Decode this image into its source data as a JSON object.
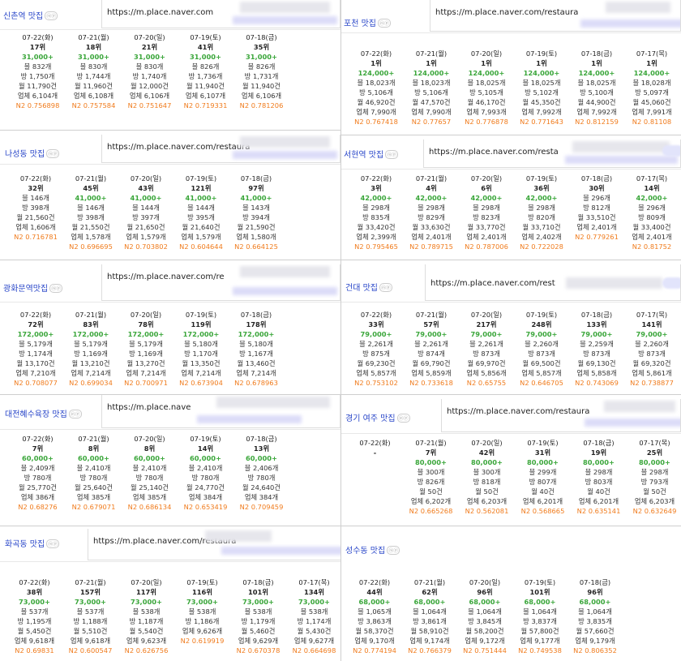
{
  "panels": [
    {
      "title": "신촌역 맛집",
      "url": "https://m.place.naver.com",
      "columns": [
        {
          "date": "07-22(화)",
          "rank": "17위",
          "vol": "31,000+",
          "lines": [
            "블 832개",
            "방 1,750개",
            "월 11,790건",
            "업체 6,104개"
          ],
          "n2": "N2 0.756898"
        },
        {
          "date": "07-21(월)",
          "rank": "18위",
          "vol": "31,000+",
          "lines": [
            "블 830개",
            "방 1,744개",
            "월 11,960건",
            "업체 6,108개"
          ],
          "n2": "N2 0.757584"
        },
        {
          "date": "07-20(일)",
          "rank": "21위",
          "vol": "31,000+",
          "lines": [
            "블 830개",
            "방 1,740개",
            "월 12,000건",
            "업체 6,106개"
          ],
          "n2": "N2 0.751647"
        },
        {
          "date": "07-19(토)",
          "rank": "41위",
          "vol": "31,000+",
          "lines": [
            "블 826개",
            "방 1,736개",
            "월 11,940건",
            "업체 6,107개"
          ],
          "n2": "N2 0.719331"
        },
        {
          "date": "07-18(금)",
          "rank": "35위",
          "vol": "31,000+",
          "lines": [
            "블 826개",
            "방 1,731개",
            "월 11,940건",
            "업체 6,106개"
          ],
          "n2": "N2 0.781206"
        }
      ]
    },
    {
      "title": "포천 맛집",
      "url": "https://m.place.naver.com/restaura",
      "columns": [
        {
          "date": "07-22(화)",
          "rank": "1위",
          "vol": "124,000+",
          "lines": [
            "블 18,023개",
            "방 5,106개",
            "월 46,920건",
            "업체 7,990개"
          ],
          "n2": "N2 0.767418"
        },
        {
          "date": "07-21(월)",
          "rank": "1위",
          "vol": "124,000+",
          "lines": [
            "블 18,023개",
            "방 5,106개",
            "월 47,570건",
            "업체 7,990개"
          ],
          "n2": "N2 0.77657"
        },
        {
          "date": "07-20(일)",
          "rank": "1위",
          "vol": "124,000+",
          "lines": [
            "블 18,025개",
            "방 5,105개",
            "월 46,170건",
            "업체 7,993개"
          ],
          "n2": "N2 0.776878"
        },
        {
          "date": "07-19(토)",
          "rank": "1위",
          "vol": "124,000+",
          "lines": [
            "블 18,025개",
            "방 5,102개",
            "월 45,350건",
            "업체 7,992개"
          ],
          "n2": "N2 0.771643"
        },
        {
          "date": "07-18(금)",
          "rank": "1위",
          "vol": "124,000+",
          "lines": [
            "블 18,025개",
            "방 5,100개",
            "월 44,900건",
            "업체 7,992개"
          ],
          "n2": "N2 0.812159"
        },
        {
          "date": "07-17(목)",
          "rank": "1위",
          "vol": "124,000+",
          "lines": [
            "블 18,028개",
            "방 5,097개",
            "월 45,060건",
            "업체 7,991개"
          ],
          "n2": "N2 0.81108"
        }
      ]
    },
    {
      "title": "나성동 맛집",
      "url": "https://m.place.naver.com/restaura",
      "columns": [
        {
          "date": "07-22(화)",
          "rank": "32위",
          "vol": "",
          "lines": [
            "블 146개",
            "방 398개",
            "월 21,560건",
            "업체 1,606개"
          ],
          "n2": "N2 0.716781"
        },
        {
          "date": "07-21(월)",
          "rank": "45위",
          "vol": "41,000+",
          "lines": [
            "블 146개",
            "방 398개",
            "월 21,550건",
            "업체 1,578개"
          ],
          "n2": "N2 0.696695"
        },
        {
          "date": "07-20(일)",
          "rank": "43위",
          "vol": "41,000+",
          "lines": [
            "블 144개",
            "방 397개",
            "월 21,650건",
            "업체 1,579개"
          ],
          "n2": "N2 0.703802"
        },
        {
          "date": "07-19(토)",
          "rank": "121위",
          "vol": "41,000+",
          "lines": [
            "블 144개",
            "방 395개",
            "월 21,640건",
            "업체 1,579개"
          ],
          "n2": "N2 0.604644"
        },
        {
          "date": "07-18(금)",
          "rank": "97위",
          "vol": "41,000+",
          "lines": [
            "블 143개",
            "방 394개",
            "월 21,590건",
            "업체 1,580개"
          ],
          "n2": "N2 0.664125"
        }
      ]
    },
    {
      "title": "서현역 맛집",
      "url": "https://m.place.naver.com/resta",
      "columns": [
        {
          "date": "07-22(화)",
          "rank": "3위",
          "vol": "42,000+",
          "lines": [
            "블 298개",
            "방 835개",
            "월 33,420건",
            "업체 2,399개"
          ],
          "n2": "N2 0.795465"
        },
        {
          "date": "07-21(월)",
          "rank": "4위",
          "vol": "42,000+",
          "lines": [
            "블 298개",
            "방 829개",
            "월 33,630건",
            "업체 2,401개"
          ],
          "n2": "N2 0.789715"
        },
        {
          "date": "07-20(일)",
          "rank": "6위",
          "vol": "42,000+",
          "lines": [
            "블 298개",
            "방 823개",
            "월 33,770건",
            "업체 2,401개"
          ],
          "n2": "N2 0.787006"
        },
        {
          "date": "07-19(토)",
          "rank": "36위",
          "vol": "42,000+",
          "lines": [
            "블 298개",
            "방 820개",
            "월 33,710건",
            "업체 2,402개"
          ],
          "n2": "N2 0.722028"
        },
        {
          "date": "07-18(금)",
          "rank": "30위",
          "vol": "",
          "lines": [
            "블 296개",
            "방 812개",
            "월 33,510건",
            "업체 2,401개"
          ],
          "n2": "N2 0.779261"
        },
        {
          "date": "07-17(목)",
          "rank": "14위",
          "vol": "42,000+",
          "lines": [
            "블 296개",
            "방 809개",
            "월 33,400건",
            "업체 2,401개"
          ],
          "n2": "N2 0.81752"
        }
      ]
    },
    {
      "title": "광화문역맛집",
      "url": "https://m.place.naver.com/re",
      "columns": [
        {
          "date": "07-22(화)",
          "rank": "72위",
          "vol": "172,000+",
          "lines": [
            "블 5,179개",
            "방 1,174개",
            "월 13,170건",
            "업체 7,210개"
          ],
          "n2": "N2 0.708077"
        },
        {
          "date": "07-21(월)",
          "rank": "83위",
          "vol": "172,000+",
          "lines": [
            "블 5,179개",
            "방 1,169개",
            "월 13,210건",
            "업체 7,214개"
          ],
          "n2": "N2 0.699034"
        },
        {
          "date": "07-20(일)",
          "rank": "78위",
          "vol": "172,000+",
          "lines": [
            "블 5,179개",
            "방 1,169개",
            "월 13,270건",
            "업체 7,214개"
          ],
          "n2": "N2 0.700971"
        },
        {
          "date": "07-19(토)",
          "rank": "119위",
          "vol": "172,000+",
          "lines": [
            "블 5,180개",
            "방 1,170개",
            "월 13,350건",
            "업체 7,214개"
          ],
          "n2": "N2 0.673904"
        },
        {
          "date": "07-18(금)",
          "rank": "178위",
          "vol": "172,000+",
          "lines": [
            "블 5,180개",
            "방 1,167개",
            "월 13,460건",
            "업체 7,214개"
          ],
          "n2": "N2 0.678963"
        }
      ]
    },
    {
      "title": "건대 맛집",
      "url": "https://m.place.naver.com/rest",
      "columns": [
        {
          "date": "07-22(화)",
          "rank": "33위",
          "vol": "79,000+",
          "lines": [
            "블 2,261개",
            "방 875개",
            "월 69,230건",
            "업체 5,857개"
          ],
          "n2": "N2 0.753102"
        },
        {
          "date": "07-21(월)",
          "rank": "57위",
          "vol": "79,000+",
          "lines": [
            "블 2,261개",
            "방 874개",
            "월 69,790건",
            "업체 5,859개"
          ],
          "n2": "N2 0.733618"
        },
        {
          "date": "07-20(일)",
          "rank": "217위",
          "vol": "79,000+",
          "lines": [
            "블 2,261개",
            "방 873개",
            "월 69,970건",
            "업체 5,856개"
          ],
          "n2": "N2 0.65755"
        },
        {
          "date": "07-19(토)",
          "rank": "248위",
          "vol": "79,000+",
          "lines": [
            "블 2,260개",
            "방 873개",
            "월 69,500건",
            "업체 5,857개"
          ],
          "n2": "N2 0.646705"
        },
        {
          "date": "07-18(금)",
          "rank": "133위",
          "vol": "79,000+",
          "lines": [
            "블 2,259개",
            "방 873개",
            "월 69,130건",
            "업체 5,858개"
          ],
          "n2": "N2 0.743069"
        },
        {
          "date": "07-17(목)",
          "rank": "141위",
          "vol": "79,000+",
          "lines": [
            "블 2,260개",
            "방 873개",
            "월 69,320건",
            "업체 5,861개"
          ],
          "n2": "N2 0.738877"
        }
      ]
    },
    {
      "title": "대전혜수육장 맛집",
      "url": "https://m.place.nave",
      "columns": [
        {
          "date": "07-22(화)",
          "rank": "7위",
          "vol": "60,000+",
          "lines": [
            "블 2,409개",
            "방 780개",
            "월 25,770건",
            "업체 386개"
          ],
          "n2": "N2 0.68276"
        },
        {
          "date": "07-21(월)",
          "rank": "8위",
          "vol": "60,000+",
          "lines": [
            "블 2,410개",
            "방 780개",
            "월 25,640건",
            "업체 385개"
          ],
          "n2": "N2 0.679071"
        },
        {
          "date": "07-20(일)",
          "rank": "8위",
          "vol": "60,000+",
          "lines": [
            "블 2,410개",
            "방 780개",
            "월 25,140건",
            "업체 385개"
          ],
          "n2": "N2 0.686134"
        },
        {
          "date": "07-19(토)",
          "rank": "14위",
          "vol": "60,000+",
          "lines": [
            "블 2,410개",
            "방 780개",
            "월 24,770건",
            "업체 384개"
          ],
          "n2": "N2 0.653419"
        },
        {
          "date": "07-18(금)",
          "rank": "13위",
          "vol": "60,000+",
          "lines": [
            "블 2,406개",
            "방 780개",
            "월 24,640건",
            "업체 384개"
          ],
          "n2": "N2 0.709459"
        }
      ]
    },
    {
      "title": "경기 여주 맛집",
      "url": "https://m.place.naver.com/restaura",
      "columns": [
        {
          "date": "07-22(화)",
          "rank": "-",
          "vol": "",
          "lines": [],
          "n2": ""
        },
        {
          "date": "07-21(월)",
          "rank": "7위",
          "vol": "80,000+",
          "lines": [
            "블 300개",
            "방 826개",
            "월 50건",
            "업체 6,202개"
          ],
          "n2": "N2 0.665268"
        },
        {
          "date": "07-20(일)",
          "rank": "42위",
          "vol": "80,000+",
          "lines": [
            "블 300개",
            "방 818개",
            "월 50건",
            "업체 6,203개"
          ],
          "n2": "N2 0.562081"
        },
        {
          "date": "07-19(토)",
          "rank": "31위",
          "vol": "80,000+",
          "lines": [
            "블 299개",
            "방 807개",
            "월 40건",
            "업체 6,201개"
          ],
          "n2": "N2 0.568665"
        },
        {
          "date": "07-18(금)",
          "rank": "19위",
          "vol": "80,000+",
          "lines": [
            "블 298개",
            "방 803개",
            "월 40건",
            "업체 6,201개"
          ],
          "n2": "N2 0.635141"
        },
        {
          "date": "07-17(목)",
          "rank": "25위",
          "vol": "80,000+",
          "lines": [
            "블 298개",
            "방 793개",
            "월 50건",
            "업체 6,203개"
          ],
          "n2": "N2 0.632649"
        }
      ]
    },
    {
      "title": "화곡동 맛집",
      "url": "https://m.place.naver.com/restaura",
      "columns": [
        {
          "date": "07-22(화)",
          "rank": "38위",
          "vol": "73,000+",
          "lines": [
            "블 537개",
            "방 1,195개",
            "월 5,450건",
            "업체 9,618개"
          ],
          "n2": "N2 0.69831"
        },
        {
          "date": "07-21(월)",
          "rank": "157위",
          "vol": "73,000+",
          "lines": [
            "블 537개",
            "방 1,188개",
            "월 5,510건",
            "업체 9,618개"
          ],
          "n2": "N2 0.600547"
        },
        {
          "date": "07-20(일)",
          "rank": "117위",
          "vol": "73,000+",
          "lines": [
            "블 538개",
            "방 1,187개",
            "월 5,540건",
            "업체 9,623개"
          ],
          "n2": "N2 0.626756"
        },
        {
          "date": "07-19(토)",
          "rank": "116위",
          "vol": "73,000+",
          "lines": [
            "블 538개",
            "방 1,186개",
            "업체 9,626개"
          ],
          "n2": "N2 0.619919"
        },
        {
          "date": "07-18(금)",
          "rank": "101위",
          "vol": "73,000+",
          "lines": [
            "블 538개",
            "방 1,179개",
            "월 5,460건",
            "업체 9,629개"
          ],
          "n2": "N2 0.670378"
        },
        {
          "date": "07-17(목)",
          "rank": "134위",
          "vol": "73,000+",
          "lines": [
            "블 538개",
            "방 1,174개",
            "월 5,430건",
            "업체 9,627개"
          ],
          "n2": "N2 0.664698"
        }
      ]
    },
    {
      "title": "성수동 맛집",
      "url": "",
      "columns": [
        {
          "date": "07-22(화)",
          "rank": "44위",
          "vol": "68,000+",
          "lines": [
            "블 1,065개",
            "방 3,863개",
            "월 58,370건",
            "업체 9,170개"
          ],
          "n2": "N2 0.774194"
        },
        {
          "date": "07-21(월)",
          "rank": "62위",
          "vol": "68,000+",
          "lines": [
            "블 1,064개",
            "방 3,861개",
            "월 58,910건",
            "업체 9,174개"
          ],
          "n2": "N2 0.766379"
        },
        {
          "date": "07-20(일)",
          "rank": "96위",
          "vol": "68,000+",
          "lines": [
            "블 1,064개",
            "방 3,845개",
            "월 58,200건",
            "업체 9,172개"
          ],
          "n2": "N2 0.751444"
        },
        {
          "date": "07-19(토)",
          "rank": "101위",
          "vol": "68,000+",
          "lines": [
            "블 1,064개",
            "방 3,837개",
            "월 57,800건",
            "업체 9,177개"
          ],
          "n2": "N2 0.749538"
        },
        {
          "date": "07-18(금)",
          "rank": "96위",
          "vol": "68,000+",
          "lines": [
            "블 1,064개",
            "방 3,835개",
            "월 57,660건",
            "업체 9,179개"
          ],
          "n2": "N2 0.806352"
        }
      ]
    }
  ],
  "badge": "ⓜⓟ"
}
